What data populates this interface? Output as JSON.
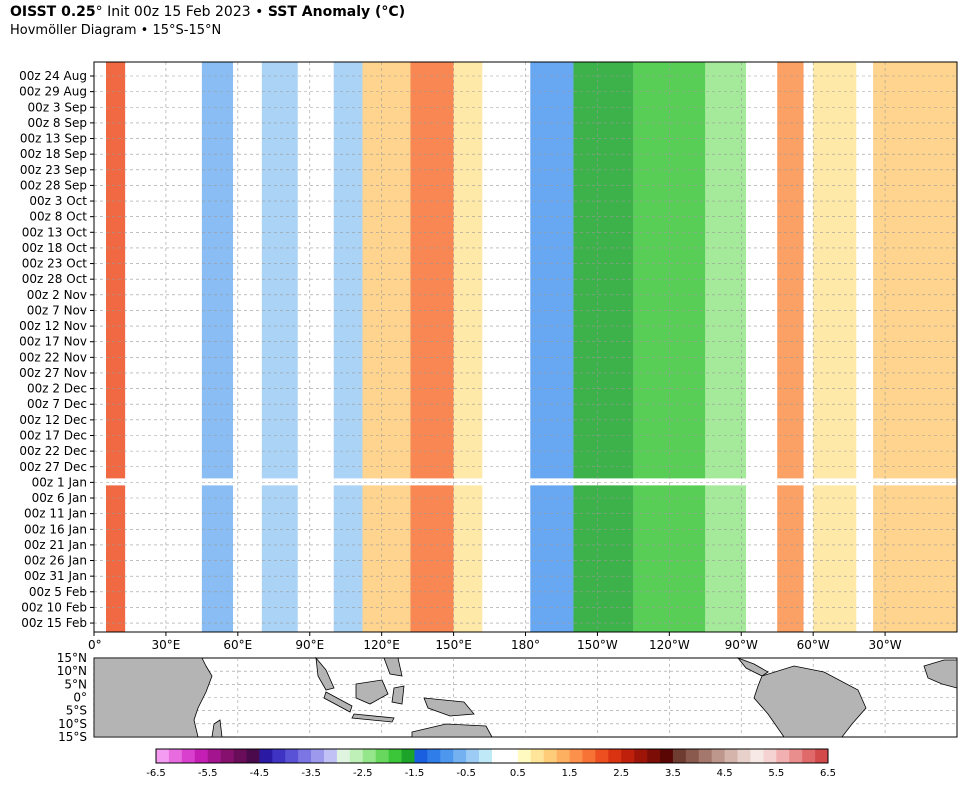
{
  "header": {
    "product": "OISST 0.25",
    "init_text": "° Init 00z 15 Feb 2023 •",
    "field": "SST Anomaly (°C)",
    "subtitle": "Hovmöller Diagram • 15°S-15°N"
  },
  "chart_data": {
    "type": "heatmap",
    "title": "OISST 0.25° Init 00z 15 Feb 2023 • SST Anomaly (°C)",
    "subtitle": "Hovmöller Diagram • 15°S-15°N",
    "x_ticks": [
      "0°",
      "30°E",
      "60°E",
      "90°E",
      "120°E",
      "150°E",
      "180°",
      "150°W",
      "120°W",
      "90°W",
      "60°W",
      "30°W"
    ],
    "x_tick_lon": [
      0,
      30,
      60,
      90,
      120,
      150,
      180,
      210,
      240,
      270,
      300,
      330
    ],
    "xlim": [
      0,
      360
    ],
    "y_ticks": [
      "00z 24 Aug",
      "00z 29 Aug",
      "00z 3 Sep",
      "00z 8 Sep",
      "00z 13 Sep",
      "00z 18 Sep",
      "00z 23 Sep",
      "00z 28 Sep",
      "00z 3 Oct",
      "00z 8 Oct",
      "00z 13 Oct",
      "00z 18 Oct",
      "00z 23 Oct",
      "00z 28 Oct",
      "00z 2 Nov",
      "00z 7 Nov",
      "00z 12 Nov",
      "00z 17 Nov",
      "00z 22 Nov",
      "00z 27 Nov",
      "00z 2 Dec",
      "00z 7 Dec",
      "00z 12 Dec",
      "00z 17 Dec",
      "00z 22 Dec",
      "00z 27 Dec",
      "00z 1 Jan",
      "00z 6 Jan",
      "00z 11 Jan",
      "00z 16 Jan",
      "00z 21 Jan",
      "00z 26 Jan",
      "00z 31 Jan",
      "00z 5 Feb",
      "00z 10 Feb",
      "00z 15 Feb"
    ],
    "y_direction": "time increases downward",
    "grid": true,
    "anomaly_bands": [
      {
        "lon": [
          5,
          13
        ],
        "value": 2.0
      },
      {
        "lon": [
          45,
          58
        ],
        "value": -0.6
      },
      {
        "lon": [
          70,
          85
        ],
        "value": -0.5
      },
      {
        "lon": [
          100,
          112
        ],
        "value": -0.4
      },
      {
        "lon": [
          112,
          132
        ],
        "value": 1.2
      },
      {
        "lon": [
          132,
          150
        ],
        "value": 1.8
      },
      {
        "lon": [
          150,
          162
        ],
        "value": 1.0
      },
      {
        "lon": [
          182,
          200
        ],
        "value": -0.9
      },
      {
        "lon": [
          200,
          225
        ],
        "value": -1.6
      },
      {
        "lon": [
          225,
          255
        ],
        "value": -1.9
      },
      {
        "lon": [
          255,
          272
        ],
        "value": -2.3
      },
      {
        "lon": [
          285,
          296
        ],
        "value": 1.5
      },
      {
        "lon": [
          300,
          318
        ],
        "value": 0.8
      },
      {
        "lon": [
          325,
          360
        ],
        "value": 1.1
      }
    ],
    "missing_date": "00z 1 Jan",
    "map_lat_ticks": [
      "15°N",
      "10°N",
      "5°N",
      "0°",
      "5°S",
      "10°S",
      "15°S"
    ],
    "colorbar": {
      "ticks": [
        "-6.5",
        "-5.5",
        "-4.5",
        "-3.5",
        "-2.5",
        "-1.5",
        "-0.5",
        "0.5",
        "1.5",
        "2.5",
        "3.5",
        "4.5",
        "5.5",
        "6.5"
      ],
      "tick_values": [
        -6.5,
        -5.5,
        -4.5,
        -3.5,
        -2.5,
        -1.5,
        -0.5,
        0.5,
        1.5,
        2.5,
        3.5,
        4.5,
        5.5,
        6.5
      ],
      "range": [
        -6.5,
        6.5
      ],
      "colors": [
        "#f49cf2",
        "#e86bdf",
        "#d840cd",
        "#c41eb5",
        "#a5148f",
        "#85106d",
        "#6a0d58",
        "#4a0a4c",
        "#2a1aa3",
        "#3e33c2",
        "#5a52d6",
        "#7b76e3",
        "#9d9aee",
        "#c2c1f6",
        "#dff5df",
        "#bff0b8",
        "#95e68a",
        "#68d75e",
        "#3bc539",
        "#1ba32a",
        "#1a5fe0",
        "#2f7de8",
        "#4d98ee",
        "#74b1f1",
        "#9ccbf5",
        "#c0e9f8",
        "#ffffff",
        "#ffffff",
        "#fffac0",
        "#ffe59a",
        "#ffcc7a",
        "#fdb060",
        "#fb914a",
        "#f77235",
        "#ed4f21",
        "#d93312",
        "#be200b",
        "#9e1408",
        "#7b0c06",
        "#5a0604",
        "#6e3c30",
        "#8a5a4e",
        "#a4786c",
        "#bd978c",
        "#d4b4ab",
        "#e8d1ca",
        "#f7e9e6",
        "#f6d3d3",
        "#f2b0b0",
        "#ea8d8d",
        "#e06a6a",
        "#d24a4a"
      ]
    }
  }
}
